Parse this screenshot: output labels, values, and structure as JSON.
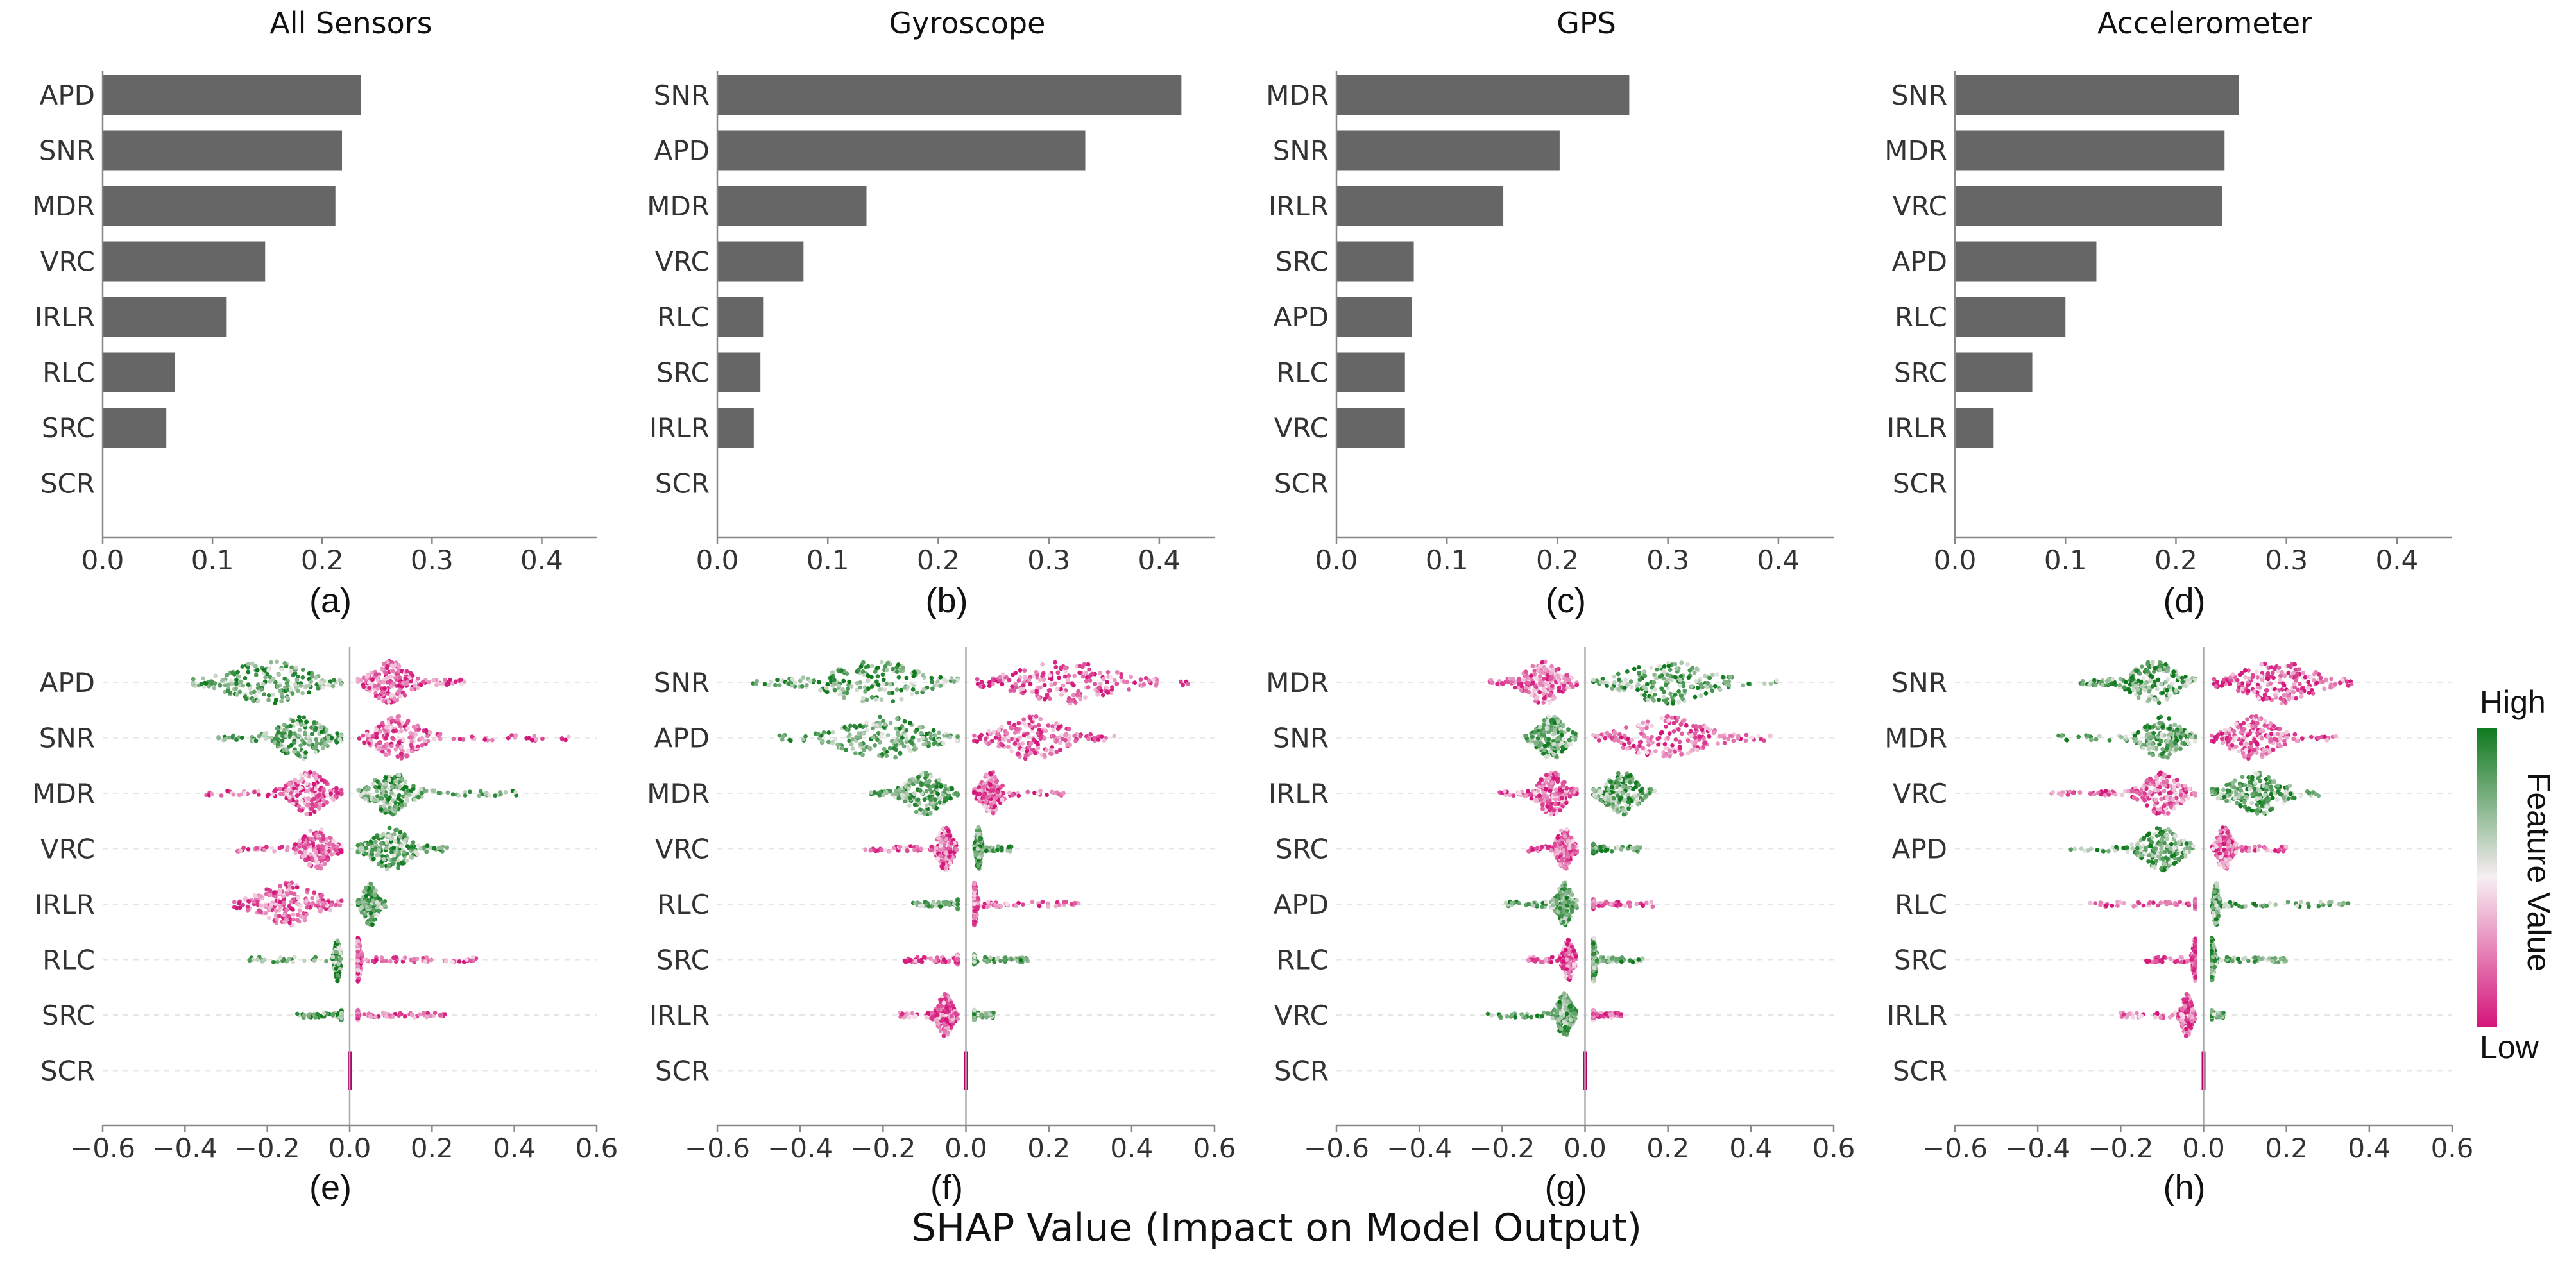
{
  "xlabel": "SHAP Value (Impact on Model Output)",
  "colors": {
    "bar": "#666666",
    "high": "#0f7a1e",
    "mid": "#f7eef2",
    "low": "#d4157a",
    "axis": "#888888",
    "zero": "#aaaaaa"
  },
  "colorbar": {
    "high_label": "High",
    "low_label": "Low",
    "title": "Feature Value"
  },
  "chart_data": [
    {
      "type": "bar",
      "panel": "(a)",
      "title": "All Sensors",
      "categories": [
        "APD",
        "SNR",
        "MDR",
        "VRC",
        "IRLR",
        "RLC",
        "SRC",
        "SCR"
      ],
      "values": [
        0.235,
        0.218,
        0.212,
        0.148,
        0.113,
        0.066,
        0.058,
        0.0
      ],
      "xlim": [
        0,
        0.45
      ],
      "xticks": [
        "0.0",
        "0.1",
        "0.2",
        "0.3",
        "0.4"
      ]
    },
    {
      "type": "bar",
      "panel": "(b)",
      "title": "Gyroscope",
      "categories": [
        "SNR",
        "APD",
        "MDR",
        "VRC",
        "RLC",
        "SRC",
        "IRLR",
        "SCR"
      ],
      "values": [
        0.42,
        0.333,
        0.135,
        0.078,
        0.042,
        0.039,
        0.033,
        0.0
      ],
      "xlim": [
        0,
        0.45
      ],
      "xticks": [
        "0.0",
        "0.1",
        "0.2",
        "0.3",
        "0.4"
      ]
    },
    {
      "type": "bar",
      "panel": "(c)",
      "title": "GPS",
      "categories": [
        "MDR",
        "SNR",
        "IRLR",
        "SRC",
        "APD",
        "RLC",
        "VRC",
        "SCR"
      ],
      "values": [
        0.265,
        0.202,
        0.151,
        0.07,
        0.068,
        0.062,
        0.062,
        0.0
      ],
      "xlim": [
        0,
        0.45
      ],
      "xticks": [
        "0.0",
        "0.1",
        "0.2",
        "0.3",
        "0.4"
      ]
    },
    {
      "type": "bar",
      "panel": "(d)",
      "title": "Accelerometer",
      "categories": [
        "SNR",
        "MDR",
        "VRC",
        "APD",
        "RLC",
        "SRC",
        "IRLR",
        "SCR"
      ],
      "values": [
        0.257,
        0.244,
        0.242,
        0.128,
        0.1,
        0.07,
        0.035,
        0.0
      ],
      "xlim": [
        0,
        0.45
      ],
      "xticks": [
        "0.0",
        "0.1",
        "0.2",
        "0.3",
        "0.4"
      ]
    },
    {
      "type": "scatter",
      "panel": "(e)",
      "categories": [
        "APD",
        "SNR",
        "MDR",
        "VRC",
        "IRLR",
        "RLC",
        "SRC",
        "SCR"
      ],
      "rows": [
        {
          "neg": [
            -0.38,
            -0.02
          ],
          "pos": [
            0.02,
            0.28
          ],
          "negc": -0.2,
          "posc": 0.1,
          "negHigh": true
        },
        {
          "neg": [
            -0.32,
            -0.02
          ],
          "pos": [
            0.02,
            0.55
          ],
          "negc": -0.12,
          "posc": 0.12,
          "negHigh": true
        },
        {
          "neg": [
            -0.35,
            -0.02
          ],
          "pos": [
            0.02,
            0.43
          ],
          "negc": -0.1,
          "posc": 0.1,
          "negHigh": false
        },
        {
          "neg": [
            -0.28,
            -0.02
          ],
          "pos": [
            0.02,
            0.25
          ],
          "negc": -0.08,
          "posc": 0.1,
          "negHigh": false
        },
        {
          "neg": [
            -0.28,
            -0.02
          ],
          "pos": [
            0.02,
            0.09
          ],
          "negc": -0.15,
          "posc": 0.05,
          "negHigh": false
        },
        {
          "neg": [
            -0.25,
            -0.02
          ],
          "pos": [
            0.02,
            0.31
          ],
          "negc": -0.03,
          "posc": 0.02,
          "negHigh": true
        },
        {
          "neg": [
            -0.13,
            -0.02
          ],
          "pos": [
            0.02,
            0.24
          ],
          "negc": -0.01,
          "posc": 0.01,
          "negHigh": true
        },
        {
          "neg": [
            -0.005,
            0
          ],
          "pos": [
            0,
            0.005
          ],
          "negc": 0,
          "posc": 0,
          "negHigh": false
        }
      ],
      "xlim": [
        -0.6,
        0.6
      ],
      "xticks": [
        "−0.6",
        "−0.4",
        "−0.2",
        "0.0",
        "0.2",
        "0.4",
        "0.6"
      ]
    },
    {
      "type": "scatter",
      "panel": "(f)",
      "categories": [
        "SNR",
        "APD",
        "MDR",
        "VRC",
        "RLC",
        "SRC",
        "IRLR",
        "SCR"
      ],
      "rows": [
        {
          "neg": [
            -0.52,
            -0.02
          ],
          "pos": [
            0.02,
            0.54
          ],
          "negc": -0.22,
          "posc": 0.24,
          "negHigh": true
        },
        {
          "neg": [
            -0.45,
            -0.02
          ],
          "pos": [
            0.02,
            0.37
          ],
          "negc": -0.2,
          "posc": 0.16,
          "negHigh": true
        },
        {
          "neg": [
            -0.23,
            -0.02
          ],
          "pos": [
            0.02,
            0.24
          ],
          "negc": -0.1,
          "posc": 0.06,
          "negHigh": true
        },
        {
          "neg": [
            -0.25,
            -0.02
          ],
          "pos": [
            0.02,
            0.11
          ],
          "negc": -0.05,
          "posc": 0.03,
          "negHigh": false
        },
        {
          "neg": [
            -0.13,
            -0.02
          ],
          "pos": [
            0.02,
            0.28
          ],
          "negc": -0.01,
          "posc": 0.02,
          "negHigh": true
        },
        {
          "neg": [
            -0.15,
            -0.02
          ],
          "pos": [
            0.02,
            0.15
          ],
          "negc": -0.01,
          "posc": 0.01,
          "negHigh": false
        },
        {
          "neg": [
            -0.16,
            -0.02
          ],
          "pos": [
            0.02,
            0.07
          ],
          "negc": -0.05,
          "posc": 0.01,
          "negHigh": false
        },
        {
          "neg": [
            -0.005,
            0
          ],
          "pos": [
            0,
            0.005
          ],
          "negc": 0,
          "posc": 0,
          "negHigh": false
        }
      ],
      "xlim": [
        -0.6,
        0.6
      ],
      "xticks": [
        "−0.6",
        "−0.4",
        "−0.2",
        "0.0",
        "0.2",
        "0.4",
        "0.6"
      ]
    },
    {
      "type": "scatter",
      "panel": "(g)",
      "categories": [
        "MDR",
        "SNR",
        "IRLR",
        "SRC",
        "APD",
        "RLC",
        "VRC",
        "SCR"
      ],
      "rows": [
        {
          "neg": [
            -0.23,
            -0.02
          ],
          "pos": [
            0.02,
            0.47
          ],
          "negc": -0.1,
          "posc": 0.2,
          "negHigh": false
        },
        {
          "neg": [
            -0.15,
            -0.02
          ],
          "pos": [
            0.02,
            0.45
          ],
          "negc": -0.08,
          "posc": 0.2,
          "negHigh": true
        },
        {
          "neg": [
            -0.22,
            -0.02
          ],
          "pos": [
            0.02,
            0.17
          ],
          "negc": -0.08,
          "posc": 0.09,
          "negHigh": false
        },
        {
          "neg": [
            -0.14,
            -0.02
          ],
          "pos": [
            0.02,
            0.14
          ],
          "negc": -0.05,
          "posc": 0.01,
          "negHigh": false
        },
        {
          "neg": [
            -0.2,
            -0.02
          ],
          "pos": [
            0.02,
            0.17
          ],
          "negc": -0.05,
          "posc": 0.01,
          "negHigh": true
        },
        {
          "neg": [
            -0.14,
            -0.02
          ],
          "pos": [
            0.02,
            0.14
          ],
          "negc": -0.04,
          "posc": 0.02,
          "negHigh": false
        },
        {
          "neg": [
            -0.24,
            -0.02
          ],
          "pos": [
            0.02,
            0.09
          ],
          "negc": -0.05,
          "posc": 0.01,
          "negHigh": true
        },
        {
          "neg": [
            -0.005,
            0
          ],
          "pos": [
            0,
            0.005
          ],
          "negc": 0,
          "posc": 0,
          "negHigh": false
        }
      ],
      "xlim": [
        -0.6,
        0.6
      ],
      "xticks": [
        "−0.6",
        "−0.4",
        "−0.2",
        "0.0",
        "0.2",
        "0.4",
        "0.6"
      ]
    },
    {
      "type": "scatter",
      "panel": "(h)",
      "categories": [
        "SNR",
        "MDR",
        "VRC",
        "APD",
        "RLC",
        "SRC",
        "IRLR",
        "SCR"
      ],
      "rows": [
        {
          "neg": [
            -0.3,
            -0.02
          ],
          "pos": [
            0.02,
            0.36
          ],
          "negc": -0.12,
          "posc": 0.18,
          "negHigh": true
        },
        {
          "neg": [
            -0.35,
            -0.02
          ],
          "pos": [
            0.02,
            0.33
          ],
          "negc": -0.1,
          "posc": 0.12,
          "negHigh": true
        },
        {
          "neg": [
            -0.38,
            -0.02
          ],
          "pos": [
            0.02,
            0.29
          ],
          "negc": -0.1,
          "posc": 0.13,
          "negHigh": false
        },
        {
          "neg": [
            -0.33,
            -0.02
          ],
          "pos": [
            0.02,
            0.2
          ],
          "negc": -0.1,
          "posc": 0.05,
          "negHigh": true
        },
        {
          "neg": [
            -0.28,
            -0.02
          ],
          "pos": [
            0.02,
            0.36
          ],
          "negc": -0.01,
          "posc": 0.03,
          "negHigh": false
        },
        {
          "neg": [
            -0.14,
            -0.02
          ],
          "pos": [
            0.02,
            0.2
          ],
          "negc": -0.02,
          "posc": 0.02,
          "negHigh": false
        },
        {
          "neg": [
            -0.2,
            -0.02
          ],
          "pos": [
            0.02,
            0.05
          ],
          "negc": -0.04,
          "posc": 0.01,
          "negHigh": false
        },
        {
          "neg": [
            -0.005,
            0
          ],
          "pos": [
            0,
            0.005
          ],
          "negc": 0,
          "posc": 0,
          "negHigh": false
        }
      ],
      "xlim": [
        -0.6,
        0.6
      ],
      "xticks": [
        "−0.6",
        "−0.4",
        "−0.2",
        "0.0",
        "0.2",
        "0.4",
        "0.6"
      ]
    }
  ]
}
